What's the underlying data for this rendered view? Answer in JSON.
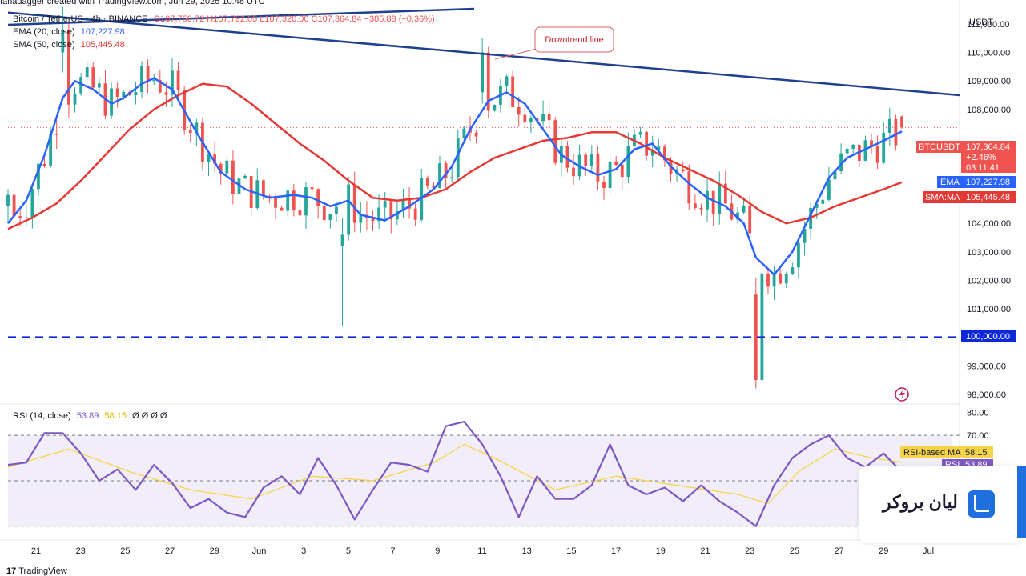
{
  "header": {
    "author_line": "fanadagger created with TradingView.com, Jun 29, 2025 10:48 UTC",
    "symbol": "Bitcoin / TetherUS · 4h · BINANCE",
    "ohlc": "O107,750.72 H107,792.05 L107,320.00 C107,364.84 −385.88 (−0.36%)",
    "ema_label": "EMA (20, close)",
    "ema_value": "107,227.98",
    "sma_label": "SMA (50, close)",
    "sma_value": "105,445.48",
    "rsi_label": "RSI (14, close)",
    "rsi_value": "53.89",
    "rsi_ma_value": "58.15",
    "rsi_extra": "Ø Ø Ø Ø"
  },
  "price_axis": {
    "currency": "USDT",
    "ticks": [
      "111,000.00",
      "110,000.00",
      "109,000.00",
      "108,000.00",
      "105,000.00",
      "104,000.00",
      "103,000.00",
      "102,000.00",
      "101,000.00",
      "99,000.00",
      "98,000.00"
    ],
    "tick_values": [
      111000,
      110000,
      109000,
      108000,
      105000,
      104000,
      103000,
      102000,
      101000,
      99000,
      98000
    ]
  },
  "price_tags": {
    "symbol_name": "BTCUSDT",
    "last_price": "107,364.84",
    "change_pct": "+2.46%",
    "countdown": "03:11:41",
    "ema_tag": "EMA",
    "ema_value": "107,227.98",
    "sma_tag": "SMA:MA",
    "sma_value": "105,445.48",
    "support_value": "100,000.00"
  },
  "rsi_axis": {
    "ticks": [
      "80.00",
      "70.00"
    ],
    "tick_values": [
      80,
      70
    ],
    "rsi_ma_tag": "RSI-based MA",
    "rsi_ma_value": "58.15",
    "rsi_tag": "RSI",
    "rsi_value": "53.89"
  },
  "x_axis": {
    "labels": [
      "21",
      "23",
      "25",
      "27",
      "29",
      "Jun",
      "3",
      "5",
      "7",
      "9",
      "11",
      "13",
      "15",
      "17",
      "19",
      "21",
      "23",
      "25",
      "27",
      "29",
      "Jul"
    ]
  },
  "annotation": {
    "text": "Downtrend line"
  },
  "branding": {
    "overlay_text": "لیان بروکر",
    "tradingview": "TradingView"
  },
  "colors": {
    "up": "#26a69a",
    "down": "#ef5350",
    "ema": "#2962ff",
    "sma": "#e53935",
    "trendline": "#1f3f8f",
    "support": "#0d28d8",
    "rsi": "#7e57c2",
    "rsi_ma": "#f5d34a"
  },
  "chart_data": {
    "type": "candlestick",
    "title": "Bitcoin / TetherUS · 4h · BINANCE",
    "xlabel": "",
    "ylabel": "USDT",
    "ylim": [
      97800,
      111700
    ],
    "support_level": 100000,
    "ema_series": [
      [
        0,
        104000
      ],
      [
        3,
        104800
      ],
      [
        6,
        106400
      ],
      [
        9,
        108400
      ],
      [
        11,
        109000
      ],
      [
        14,
        108700
      ],
      [
        17,
        108200
      ],
      [
        19,
        108400
      ],
      [
        22,
        108900
      ],
      [
        24,
        109100
      ],
      [
        27,
        108700
      ],
      [
        31,
        107200
      ],
      [
        35,
        105800
      ],
      [
        39,
        105200
      ],
      [
        43,
        104900
      ],
      [
        47,
        105000
      ],
      [
        50,
        104900
      ],
      [
        53,
        104600
      ],
      [
        56,
        104800
      ],
      [
        58,
        104300
      ],
      [
        62,
        104100
      ],
      [
        66,
        104600
      ],
      [
        70,
        105200
      ],
      [
        73,
        106000
      ],
      [
        76,
        107300
      ],
      [
        79,
        108300
      ],
      [
        82,
        108600
      ],
      [
        85,
        108200
      ],
      [
        88,
        107300
      ],
      [
        91,
        106400
      ],
      [
        94,
        106000
      ],
      [
        97,
        105700
      ],
      [
        100,
        105900
      ],
      [
        103,
        106600
      ],
      [
        106,
        106800
      ],
      [
        109,
        106000
      ],
      [
        112,
        105400
      ],
      [
        115,
        104900
      ],
      [
        118,
        104600
      ],
      [
        121,
        104000
      ],
      [
        123,
        102800
      ],
      [
        126,
        102200
      ],
      [
        129,
        103000
      ],
      [
        132,
        104300
      ],
      [
        135,
        105600
      ],
      [
        138,
        106300
      ],
      [
        141,
        106600
      ],
      [
        144,
        106900
      ],
      [
        147,
        107228
      ]
    ],
    "sma_series": [
      [
        0,
        103800
      ],
      [
        4,
        104200
      ],
      [
        8,
        104700
      ],
      [
        12,
        105500
      ],
      [
        16,
        106400
      ],
      [
        20,
        107300
      ],
      [
        24,
        108000
      ],
      [
        28,
        108500
      ],
      [
        32,
        108900
      ],
      [
        36,
        108800
      ],
      [
        40,
        108200
      ],
      [
        44,
        107500
      ],
      [
        48,
        106800
      ],
      [
        52,
        106200
      ],
      [
        56,
        105500
      ],
      [
        60,
        104900
      ],
      [
        64,
        104800
      ],
      [
        68,
        104900
      ],
      [
        72,
        105200
      ],
      [
        76,
        105800
      ],
      [
        80,
        106300
      ],
      [
        84,
        106600
      ],
      [
        88,
        106900
      ],
      [
        92,
        107000
      ],
      [
        96,
        107200
      ],
      [
        100,
        107200
      ],
      [
        104,
        106800
      ],
      [
        108,
        106300
      ],
      [
        112,
        105900
      ],
      [
        116,
        105500
      ],
      [
        120,
        105000
      ],
      [
        124,
        104400
      ],
      [
        128,
        104000
      ],
      [
        132,
        104200
      ],
      [
        136,
        104600
      ],
      [
        140,
        104900
      ],
      [
        144,
        105200
      ],
      [
        147,
        105445
      ]
    ],
    "candles_sample": [
      {
        "x": 0,
        "open": 104600,
        "high": 105200,
        "low": 104000,
        "close": 105000
      },
      {
        "x": 9,
        "open": 110000,
        "high": 111600,
        "low": 109300,
        "close": 110800
      },
      {
        "x": 55,
        "open": 103200,
        "high": 104200,
        "low": 100400,
        "close": 103600
      },
      {
        "x": 78,
        "open": 108600,
        "high": 110500,
        "low": 108200,
        "close": 110000
      },
      {
        "x": 123,
        "open": 101500,
        "high": 102100,
        "low": 98200,
        "close": 98500
      },
      {
        "x": 147,
        "open": 107750.72,
        "high": 107792.05,
        "low": 107320.0,
        "close": 107364.84
      }
    ],
    "trendline": [
      [
        0,
        111400
      ],
      [
        150,
        108500
      ]
    ],
    "rsi_series": [
      [
        0,
        57
      ],
      [
        3,
        58
      ],
      [
        6,
        71
      ],
      [
        9,
        71
      ],
      [
        12,
        62
      ],
      [
        15,
        50
      ],
      [
        18,
        55
      ],
      [
        21,
        46
      ],
      [
        24,
        57
      ],
      [
        27,
        49
      ],
      [
        30,
        38
      ],
      [
        33,
        42
      ],
      [
        36,
        36
      ],
      [
        39,
        34
      ],
      [
        42,
        47
      ],
      [
        45,
        52
      ],
      [
        48,
        44
      ],
      [
        51,
        60
      ],
      [
        54,
        48
      ],
      [
        57,
        33
      ],
      [
        60,
        46
      ],
      [
        63,
        58
      ],
      [
        66,
        57
      ],
      [
        69,
        54
      ],
      [
        72,
        74
      ],
      [
        75,
        76
      ],
      [
        78,
        66
      ],
      [
        81,
        52
      ],
      [
        84,
        34
      ],
      [
        87,
        52
      ],
      [
        90,
        42
      ],
      [
        93,
        42
      ],
      [
        96,
        48
      ],
      [
        99,
        66
      ],
      [
        102,
        48
      ],
      [
        105,
        44
      ],
      [
        108,
        47
      ],
      [
        111,
        41
      ],
      [
        114,
        48
      ],
      [
        117,
        41
      ],
      [
        120,
        36
      ],
      [
        123,
        30
      ],
      [
        126,
        48
      ],
      [
        129,
        60
      ],
      [
        132,
        66
      ],
      [
        135,
        70
      ],
      [
        138,
        60
      ],
      [
        141,
        56
      ],
      [
        144,
        62
      ],
      [
        147,
        53.89
      ]
    ],
    "rsi_ma_series": [
      [
        0,
        56
      ],
      [
        10,
        64
      ],
      [
        20,
        54
      ],
      [
        30,
        46
      ],
      [
        40,
        42
      ],
      [
        50,
        52
      ],
      [
        60,
        50
      ],
      [
        70,
        58
      ],
      [
        75,
        66
      ],
      [
        80,
        60
      ],
      [
        90,
        46
      ],
      [
        100,
        52
      ],
      [
        110,
        48
      ],
      [
        120,
        44
      ],
      [
        125,
        40
      ],
      [
        130,
        54
      ],
      [
        136,
        64
      ],
      [
        142,
        60
      ],
      [
        147,
        58.15
      ]
    ],
    "rsi_ylim": [
      25,
      82
    ]
  }
}
